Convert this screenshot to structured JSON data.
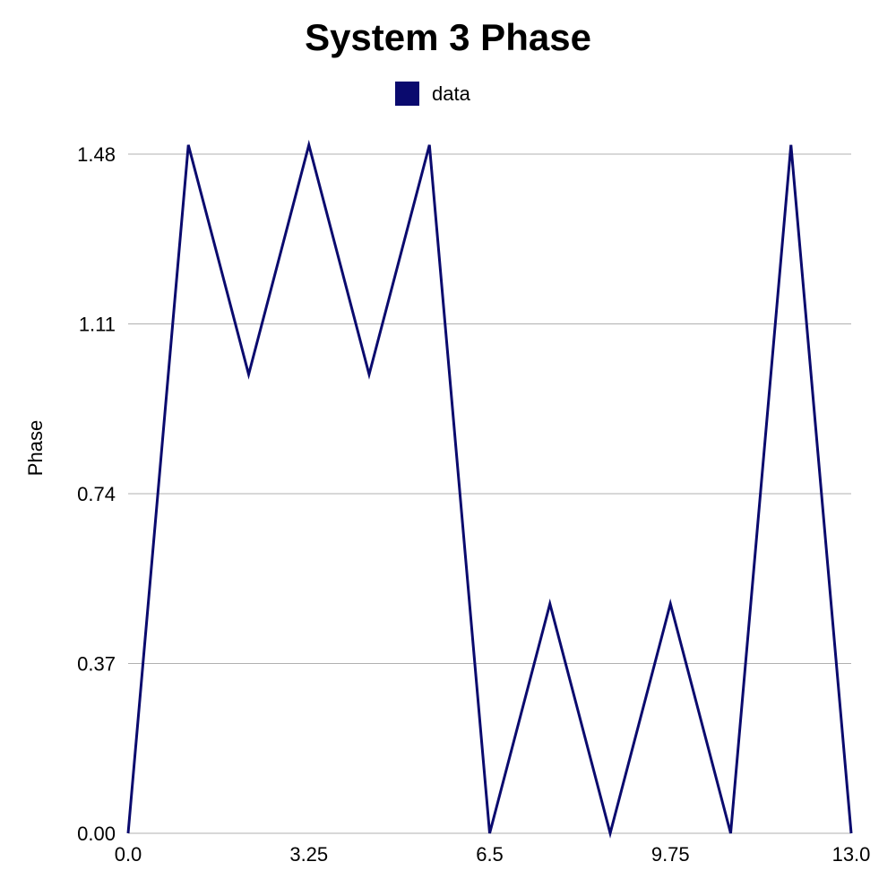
{
  "chart_data": {
    "type": "line",
    "title": "System 3 Phase",
    "xlabel": "",
    "ylabel": "Phase",
    "xlim": [
      0.0,
      13.0
    ],
    "ylim": [
      0.0,
      1.48
    ],
    "x_ticks": [
      "0.0",
      "3.25",
      "6.5",
      "9.75",
      "13.0"
    ],
    "y_ticks": [
      "0.00",
      "0.37",
      "0.74",
      "1.11",
      "1.48"
    ],
    "grid": "horizontal",
    "legend_position": "top-center",
    "series": [
      {
        "name": "data",
        "color": "#0a0a6e",
        "x": [
          0.0,
          1.083,
          2.167,
          3.25,
          4.333,
          5.417,
          6.5,
          7.583,
          8.667,
          9.75,
          10.833,
          11.917,
          13.0
        ],
        "y": [
          0.0,
          1.5,
          1.0,
          1.5,
          1.0,
          1.5,
          0.0,
          0.5,
          0.0,
          0.5,
          0.0,
          1.5,
          0.0
        ]
      }
    ]
  }
}
